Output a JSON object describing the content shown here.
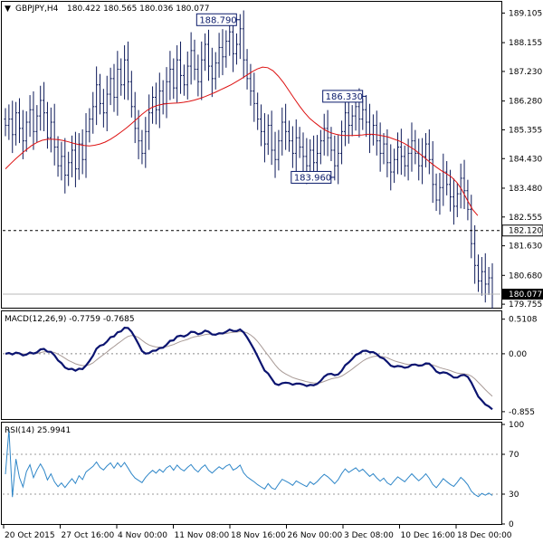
{
  "chart_data": {
    "type": "candlestick",
    "header": {
      "arrow": "▼",
      "symbol": "GBPJPY,H4",
      "ohlc": "180.422 180.565 180.036 180.077"
    },
    "price_panel": {
      "ylim": [
        179.7,
        189.35
      ],
      "y_ticks": [
        "189.105",
        "188.155",
        "187.230",
        "186.280",
        "185.355",
        "184.430",
        "183.480",
        "182.555",
        "181.630",
        "180.680",
        "179.755"
      ],
      "marker_labels": [
        {
          "text": "188.790",
          "value": 188.79,
          "bar": 67
        },
        {
          "text": "186.330",
          "value": 186.33,
          "bar": 103
        },
        {
          "text": "183.960",
          "value": 183.96,
          "bar": 94
        }
      ],
      "hline": {
        "value": 182.12,
        "label": "182.120",
        "style": "dashed"
      },
      "current_price": {
        "value": 180.077,
        "label": "180.077"
      },
      "ma_color": "#dd1111",
      "bar_color": "#0d1a5a"
    },
    "macd_panel": {
      "title": "MACD(12,26,9) -0.7759 -0.7685",
      "ylim": [
        -0.95,
        0.6
      ],
      "y_ticks": [
        "0.5108",
        "0.00",
        "-0.855"
      ],
      "main_color": "#0b1470",
      "signal_color": "#a89a96"
    },
    "rsi_panel": {
      "title": "RSI(14) 25.9941",
      "ylim": [
        0,
        100
      ],
      "y_ticks": [
        "100",
        "70",
        "30",
        "0"
      ],
      "levels": [
        70,
        30
      ],
      "color": "#2e86c8"
    },
    "x_labels": [
      "20 Oct 2015",
      "27 Oct 16:00",
      "4 Nov 00:00",
      "11 Nov 08:00",
      "18 Nov 16:00",
      "26 Nov 00:00",
      "3 Dec 08:00",
      "10 Dec 16:00",
      "18 Dec 00:00"
    ],
    "series": [
      {
        "name": "close",
        "values": [
          185.5,
          185.7,
          185.2,
          185.9,
          185.4,
          185.0,
          185.6,
          186.0,
          185.3,
          185.8,
          186.3,
          185.9,
          185.1,
          185.6,
          184.8,
          184.2,
          184.5,
          183.9,
          184.3,
          184.7,
          184.1,
          184.9,
          184.4,
          185.3,
          185.7,
          186.1,
          186.8,
          186.2,
          185.9,
          186.5,
          187.0,
          186.4,
          187.3,
          186.8,
          187.6,
          186.9,
          186.1,
          185.4,
          185.0,
          184.6,
          185.3,
          185.9,
          186.4,
          186.0,
          186.6,
          186.2,
          186.9,
          187.3,
          186.7,
          187.6,
          187.1,
          186.8,
          187.4,
          187.9,
          187.3,
          186.9,
          187.6,
          188.1,
          187.4,
          187.0,
          187.5,
          188.0,
          187.7,
          188.2,
          188.5,
          187.8,
          188.1,
          188.6,
          187.6,
          187.0,
          186.6,
          186.2,
          185.7,
          185.3,
          184.9,
          185.5,
          184.7,
          184.4,
          185.0,
          185.6,
          185.3,
          185.0,
          184.6,
          185.1,
          184.8,
          184.5,
          184.2,
          184.7,
          184.3,
          184.6,
          185.0,
          185.4,
          185.1,
          184.7,
          184.2,
          184.6,
          185.3,
          185.9,
          185.5,
          185.8,
          186.1,
          185.7,
          186.0,
          185.6,
          185.2,
          185.5,
          185.0,
          184.6,
          184.9,
          184.3,
          184.0,
          184.4,
          184.8,
          184.5,
          184.2,
          184.6,
          185.0,
          184.6,
          184.2,
          184.5,
          184.9,
          184.4,
          183.6,
          183.1,
          183.5,
          184.0,
          183.6,
          183.2,
          182.9,
          183.3,
          183.8,
          183.4,
          182.8,
          181.7,
          181.0,
          180.5,
          180.8,
          180.4,
          180.6,
          180.077
        ]
      },
      {
        "name": "ma",
        "values": [
          184.1,
          184.27,
          184.43,
          184.58,
          184.72,
          184.85,
          184.95,
          185.02,
          185.05,
          185.05,
          185.04,
          185.01,
          184.97,
          184.92,
          184.88,
          184.85,
          184.84,
          184.86,
          184.9,
          184.96,
          185.05,
          185.16,
          185.28,
          185.41,
          185.55,
          185.7,
          185.85,
          185.98,
          186.08,
          186.14,
          186.18,
          186.2,
          186.21,
          186.22,
          186.24,
          186.27,
          186.31,
          186.36,
          186.42,
          186.49,
          186.56,
          186.64,
          186.72,
          186.8,
          186.9,
          187.0,
          187.11,
          187.22,
          187.31,
          187.37,
          187.35,
          187.25,
          187.08,
          186.87,
          186.62,
          186.37,
          186.13,
          185.91,
          185.72,
          185.58,
          185.45,
          185.34,
          185.26,
          185.21,
          185.18,
          185.17,
          185.17,
          185.18,
          185.19,
          185.21,
          185.21,
          185.19,
          185.16,
          185.12,
          185.06,
          185.0,
          184.92,
          184.82,
          184.71,
          184.58,
          184.44,
          184.3,
          184.17,
          184.05,
          183.95,
          183.84,
          183.67,
          183.42,
          183.1,
          182.8,
          182.6
        ]
      }
    ]
  }
}
